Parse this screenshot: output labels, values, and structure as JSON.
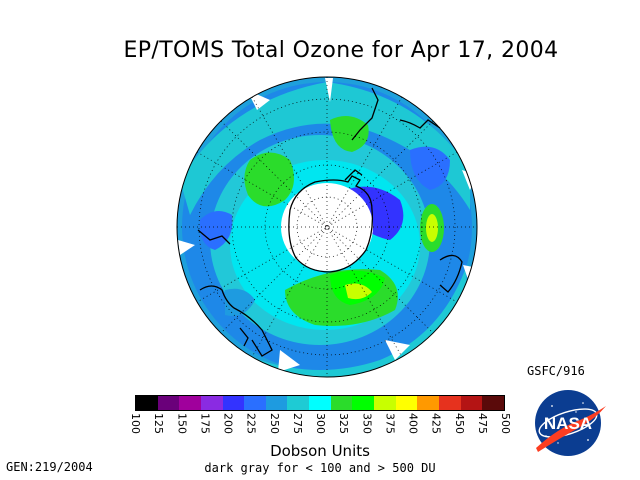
{
  "title": "EP/TOMS Total Ozone for Apr 17, 2004",
  "product_code": "GSFC/916",
  "generation_stamp": "GEN:219/2004",
  "colorbar": {
    "ticks": [
      "100",
      "125",
      "150",
      "175",
      "200",
      "225",
      "250",
      "275",
      "300",
      "325",
      "350",
      "375",
      "400",
      "425",
      "450",
      "475",
      "500"
    ],
    "colors": [
      "#000000",
      "#6a007a",
      "#a0009c",
      "#8a2be2",
      "#3333ff",
      "#2a6fff",
      "#1e9be0",
      "#1ecbd4",
      "#00ffff",
      "#2bdc2b",
      "#00ff00",
      "#c8ff00",
      "#ffff00",
      "#ff9900",
      "#e6321e",
      "#b41414",
      "#5a0a0a"
    ],
    "units_label": "Dobson Units",
    "note": "dark gray for < 100 and > 500 DU"
  },
  "logo": {
    "text": "NASA",
    "icon": "nasa-meatball-logo"
  }
}
